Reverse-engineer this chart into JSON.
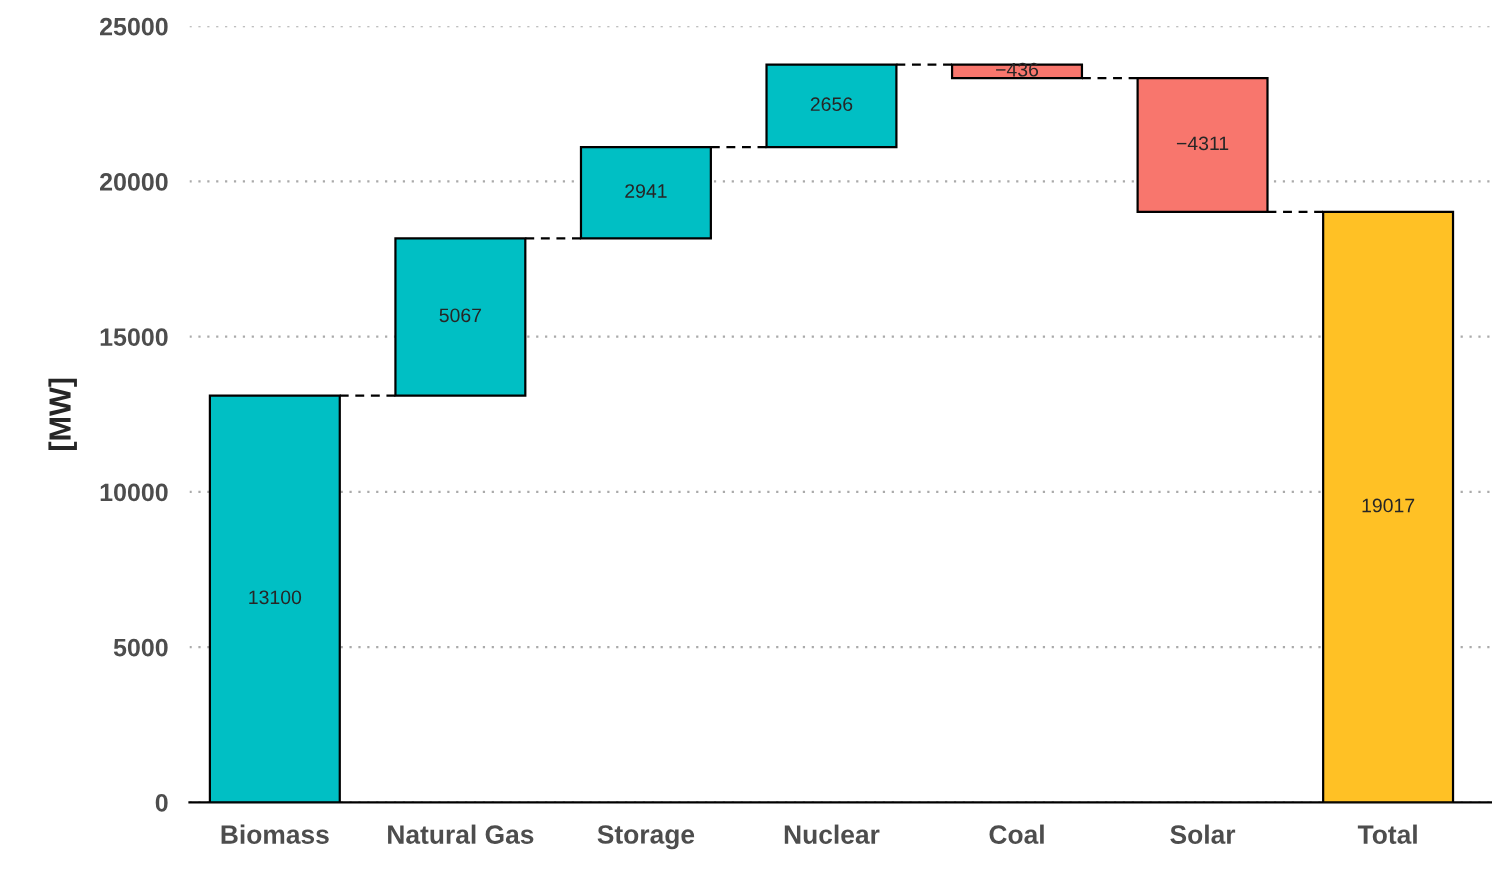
{
  "chart_data": {
    "type": "bar",
    "ylabel": "[MW]",
    "categories": [
      "Biomass",
      "Natural Gas",
      "Storage",
      "Nuclear",
      "Coal",
      "Solar",
      "Total"
    ],
    "values": [
      13100,
      5067,
      2941,
      2656,
      -436,
      -4311,
      19017
    ],
    "base": [
      0,
      13100,
      18167,
      21108,
      23764,
      23328,
      0
    ],
    "colors": [
      "#00bfc4",
      "#00bfc4",
      "#00bfc4",
      "#00bfc4",
      "#f8766d",
      "#f8766d",
      "#ffc125"
    ],
    "value_labels": [
      "13100",
      "5067",
      "2941",
      "2656",
      "−436",
      "−4311",
      "19017"
    ],
    "ylim": [
      0,
      25000
    ],
    "yticks": [
      0,
      5000,
      10000,
      15000,
      20000,
      25000
    ],
    "grid": "y",
    "legend": false
  }
}
